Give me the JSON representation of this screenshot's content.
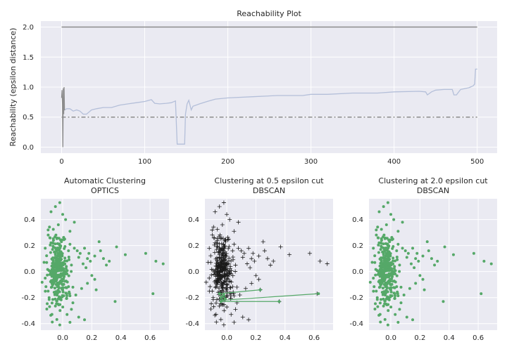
{
  "chart_data": [
    {
      "type": "line",
      "title": "Reachability Plot",
      "xlabel": "",
      "ylabel": "Reachability (epsilon distance)",
      "xlim": [
        -25,
        524
      ],
      "ylim": [
        -0.1,
        2.1
      ],
      "xticks": [
        0,
        100,
        200,
        300,
        400,
        500
      ],
      "yticks": [
        0.0,
        0.5,
        1.0,
        1.5,
        2.0
      ],
      "grid": true,
      "series": [
        {
          "color": "#b4bfd9",
          "x": [
            4,
            6,
            10,
            14,
            18,
            22,
            26,
            30,
            36,
            42,
            50,
            60,
            70,
            80,
            90,
            100,
            108,
            112,
            118,
            126,
            132,
            137,
            139,
            141,
            148,
            149,
            151,
            153,
            156,
            158,
            166,
            175,
            185,
            200,
            230,
            260,
            290,
            300,
            320,
            350,
            380,
            400,
            430,
            438,
            440,
            445,
            450,
            460,
            470,
            472,
            475,
            480,
            490,
            495,
            497,
            498,
            500
          ],
          "y": [
            0.62,
            0.64,
            0.64,
            0.6,
            0.62,
            0.6,
            0.55,
            0.55,
            0.62,
            0.64,
            0.66,
            0.66,
            0.7,
            0.72,
            0.74,
            0.76,
            0.79,
            0.73,
            0.72,
            0.73,
            0.74,
            0.77,
            0.05,
            0.05,
            0.05,
            0.55,
            0.72,
            0.78,
            0.62,
            0.68,
            0.72,
            0.76,
            0.8,
            0.82,
            0.84,
            0.86,
            0.86,
            0.88,
            0.88,
            0.9,
            0.9,
            0.92,
            0.93,
            0.92,
            0.87,
            0.92,
            0.95,
            0.96,
            0.96,
            0.87,
            0.87,
            0.96,
            0.99,
            1.02,
            1.05,
            1.3,
            1.3
          ]
        },
        {
          "color": "#8c8c8c",
          "x": [
            0,
            0.5,
            1,
            1.5,
            2,
            2.5,
            3,
            3.5,
            4
          ],
          "y": [
            0.82,
            0.95,
            0.72,
            0.0,
            0.98,
            0.55,
            1.0,
            0.62,
            0.62
          ]
        }
      ],
      "reference_lines": [
        {
          "y": 2.0,
          "style": "solid",
          "color": "#8c8c8c"
        },
        {
          "y": 0.5,
          "style": "dashdot",
          "color": "#8c8c8c"
        }
      ]
    },
    {
      "type": "scatter",
      "title": "Automatic Clustering\nOPTICS",
      "xlim": [
        -0.15,
        0.73
      ],
      "ylim": [
        -0.45,
        0.56
      ],
      "xticks": [
        0.0,
        0.2,
        0.4,
        0.6
      ],
      "yticks": [
        -0.4,
        -0.2,
        0.0,
        0.2,
        0.4
      ],
      "marker": "dot",
      "color": "#55a868",
      "points": "cluster"
    },
    {
      "type": "scatter",
      "title": "Clustering at 0.5 epsilon cut\nDBSCAN",
      "xlim": [
        -0.15,
        0.73
      ],
      "ylim": [
        -0.45,
        0.56
      ],
      "xticks": [
        0.0,
        0.2,
        0.4,
        0.6
      ],
      "yticks": [
        -0.4,
        -0.2,
        0.0,
        0.2,
        0.4
      ],
      "marker": "plus",
      "color": "#1a1a1a",
      "points": "cluster",
      "highlight_cluster": {
        "color": "#55a868",
        "points": [
          [
            -0.05,
            -0.17
          ],
          [
            -0.04,
            -0.2
          ],
          [
            -0.03,
            -0.22
          ],
          [
            -0.02,
            -0.18
          ],
          [
            -0.01,
            -0.21
          ],
          [
            -0.04,
            -0.23
          ],
          [
            0.23,
            -0.14
          ],
          [
            0.36,
            -0.23
          ],
          [
            0.63,
            -0.17
          ]
        ],
        "edges": [
          [
            0,
            6
          ],
          [
            2,
            8
          ],
          [
            5,
            7
          ],
          [
            1,
            3
          ],
          [
            3,
            4
          ],
          [
            4,
            0
          ]
        ]
      }
    },
    {
      "type": "scatter",
      "title": "Clustering at 2.0 epsilon cut\nDBSCAN",
      "xlim": [
        -0.15,
        0.73
      ],
      "ylim": [
        -0.45,
        0.56
      ],
      "xticks": [
        0.0,
        0.2,
        0.4,
        0.6
      ],
      "yticks": [
        -0.4,
        -0.2,
        0.0,
        0.2,
        0.4
      ],
      "marker": "dot",
      "color": "#55a868",
      "points": "cluster"
    }
  ],
  "scatter_points": [
    [
      0.05,
      0.21
    ],
    [
      0.08,
      0.18
    ],
    [
      0.1,
      0.16
    ],
    [
      0.12,
      0.14
    ],
    [
      0.11,
      0.11
    ],
    [
      0.15,
      0.18
    ],
    [
      0.17,
      0.1
    ],
    [
      0.18,
      0.14
    ],
    [
      0.19,
      0.08
    ],
    [
      0.16,
      0.03
    ],
    [
      0.14,
      0.06
    ],
    [
      0.22,
      0.12
    ],
    [
      0.25,
      0.23
    ],
    [
      0.26,
      0.16
    ],
    [
      0.28,
      0.1
    ],
    [
      0.3,
      0.05
    ],
    [
      0.32,
      0.08
    ],
    [
      0.37,
      0.19
    ],
    [
      0.43,
      0.13
    ],
    [
      0.57,
      0.14
    ],
    [
      0.64,
      0.08
    ],
    [
      0.69,
      0.06
    ],
    [
      0.2,
      -0.03
    ],
    [
      0.22,
      -0.06
    ],
    [
      0.17,
      -0.09
    ],
    [
      0.13,
      -0.13
    ],
    [
      0.09,
      -0.18
    ],
    [
      0.07,
      -0.24
    ],
    [
      0.11,
      -0.35
    ],
    [
      0.15,
      -0.37
    ],
    [
      0.36,
      -0.23
    ],
    [
      0.62,
      -0.17
    ],
    [
      0.23,
      -0.14
    ],
    [
      0.02,
      0.4
    ],
    [
      -0.02,
      0.53
    ],
    [
      -0.05,
      0.5
    ],
    [
      -0.08,
      0.46
    ],
    [
      0.0,
      0.44
    ],
    [
      -0.03,
      0.36
    ],
    [
      0.05,
      0.31
    ],
    [
      0.08,
      0.38
    ],
    [
      -0.1,
      0.32
    ],
    [
      -0.12,
      0.18
    ],
    [
      -0.11,
      0.07
    ],
    [
      -0.12,
      -0.05
    ],
    [
      -0.1,
      -0.15
    ],
    [
      -0.09,
      -0.27
    ],
    [
      0.03,
      -0.33
    ],
    [
      -0.02,
      -0.41
    ],
    [
      0.05,
      -0.39
    ],
    [
      0.06,
      -0.29
    ],
    [
      0.07,
      -0.12
    ],
    [
      0.06,
      0.05
    ],
    [
      0.04,
      0.16
    ]
  ]
}
